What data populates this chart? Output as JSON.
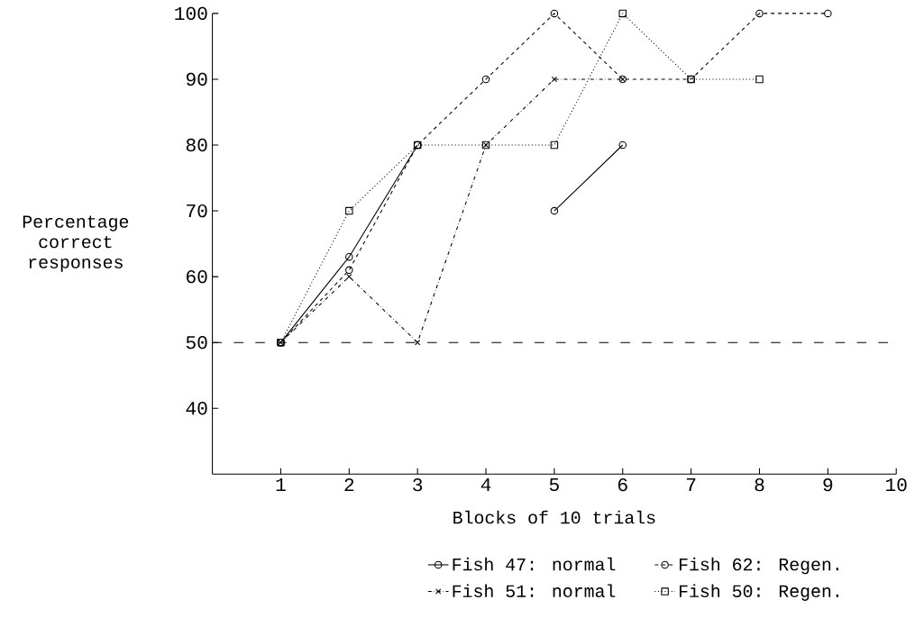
{
  "chart_data": {
    "type": "line",
    "xlabel": "Blocks of 10 trials",
    "ylabel": "Percentage correct responses",
    "x": [
      1,
      2,
      3,
      4,
      5,
      6,
      7,
      8,
      9
    ],
    "series": [
      {
        "name": "Fish 47: normal",
        "color": "#000000",
        "marker": "circle",
        "line_style": "solid",
        "values": [
          50,
          63,
          80,
          null,
          70,
          80,
          null,
          null,
          null
        ]
      },
      {
        "name": "Fish 62: Regen.",
        "color": "#000000",
        "marker": "circle",
        "line_style": "dashed",
        "values": [
          50,
          61,
          80,
          90,
          100,
          90,
          90,
          100,
          100
        ]
      },
      {
        "name": "Fish 51: normal",
        "color": "#000000",
        "marker": "cross",
        "line_style": "dashdotted",
        "values": [
          50,
          60,
          50,
          80,
          90,
          90,
          null,
          null,
          null
        ]
      },
      {
        "name": "Fish 50: Regen.",
        "color": "#000000",
        "marker": "square",
        "line_style": "dotted",
        "values": [
          50,
          70,
          80,
          80,
          80,
          100,
          90,
          90,
          null
        ]
      }
    ],
    "xlim": [
      0,
      10
    ],
    "xticks": [
      1,
      2,
      3,
      4,
      5,
      6,
      7,
      8,
      9,
      10
    ],
    "ylim": [
      30,
      100
    ],
    "yticks": [
      40,
      50,
      60,
      70,
      80,
      90,
      100
    ],
    "ref_lines": [
      {
        "axis": "y",
        "value": 50,
        "line_style": "dashed"
      }
    ],
    "grid": false,
    "legend": "bottom"
  }
}
